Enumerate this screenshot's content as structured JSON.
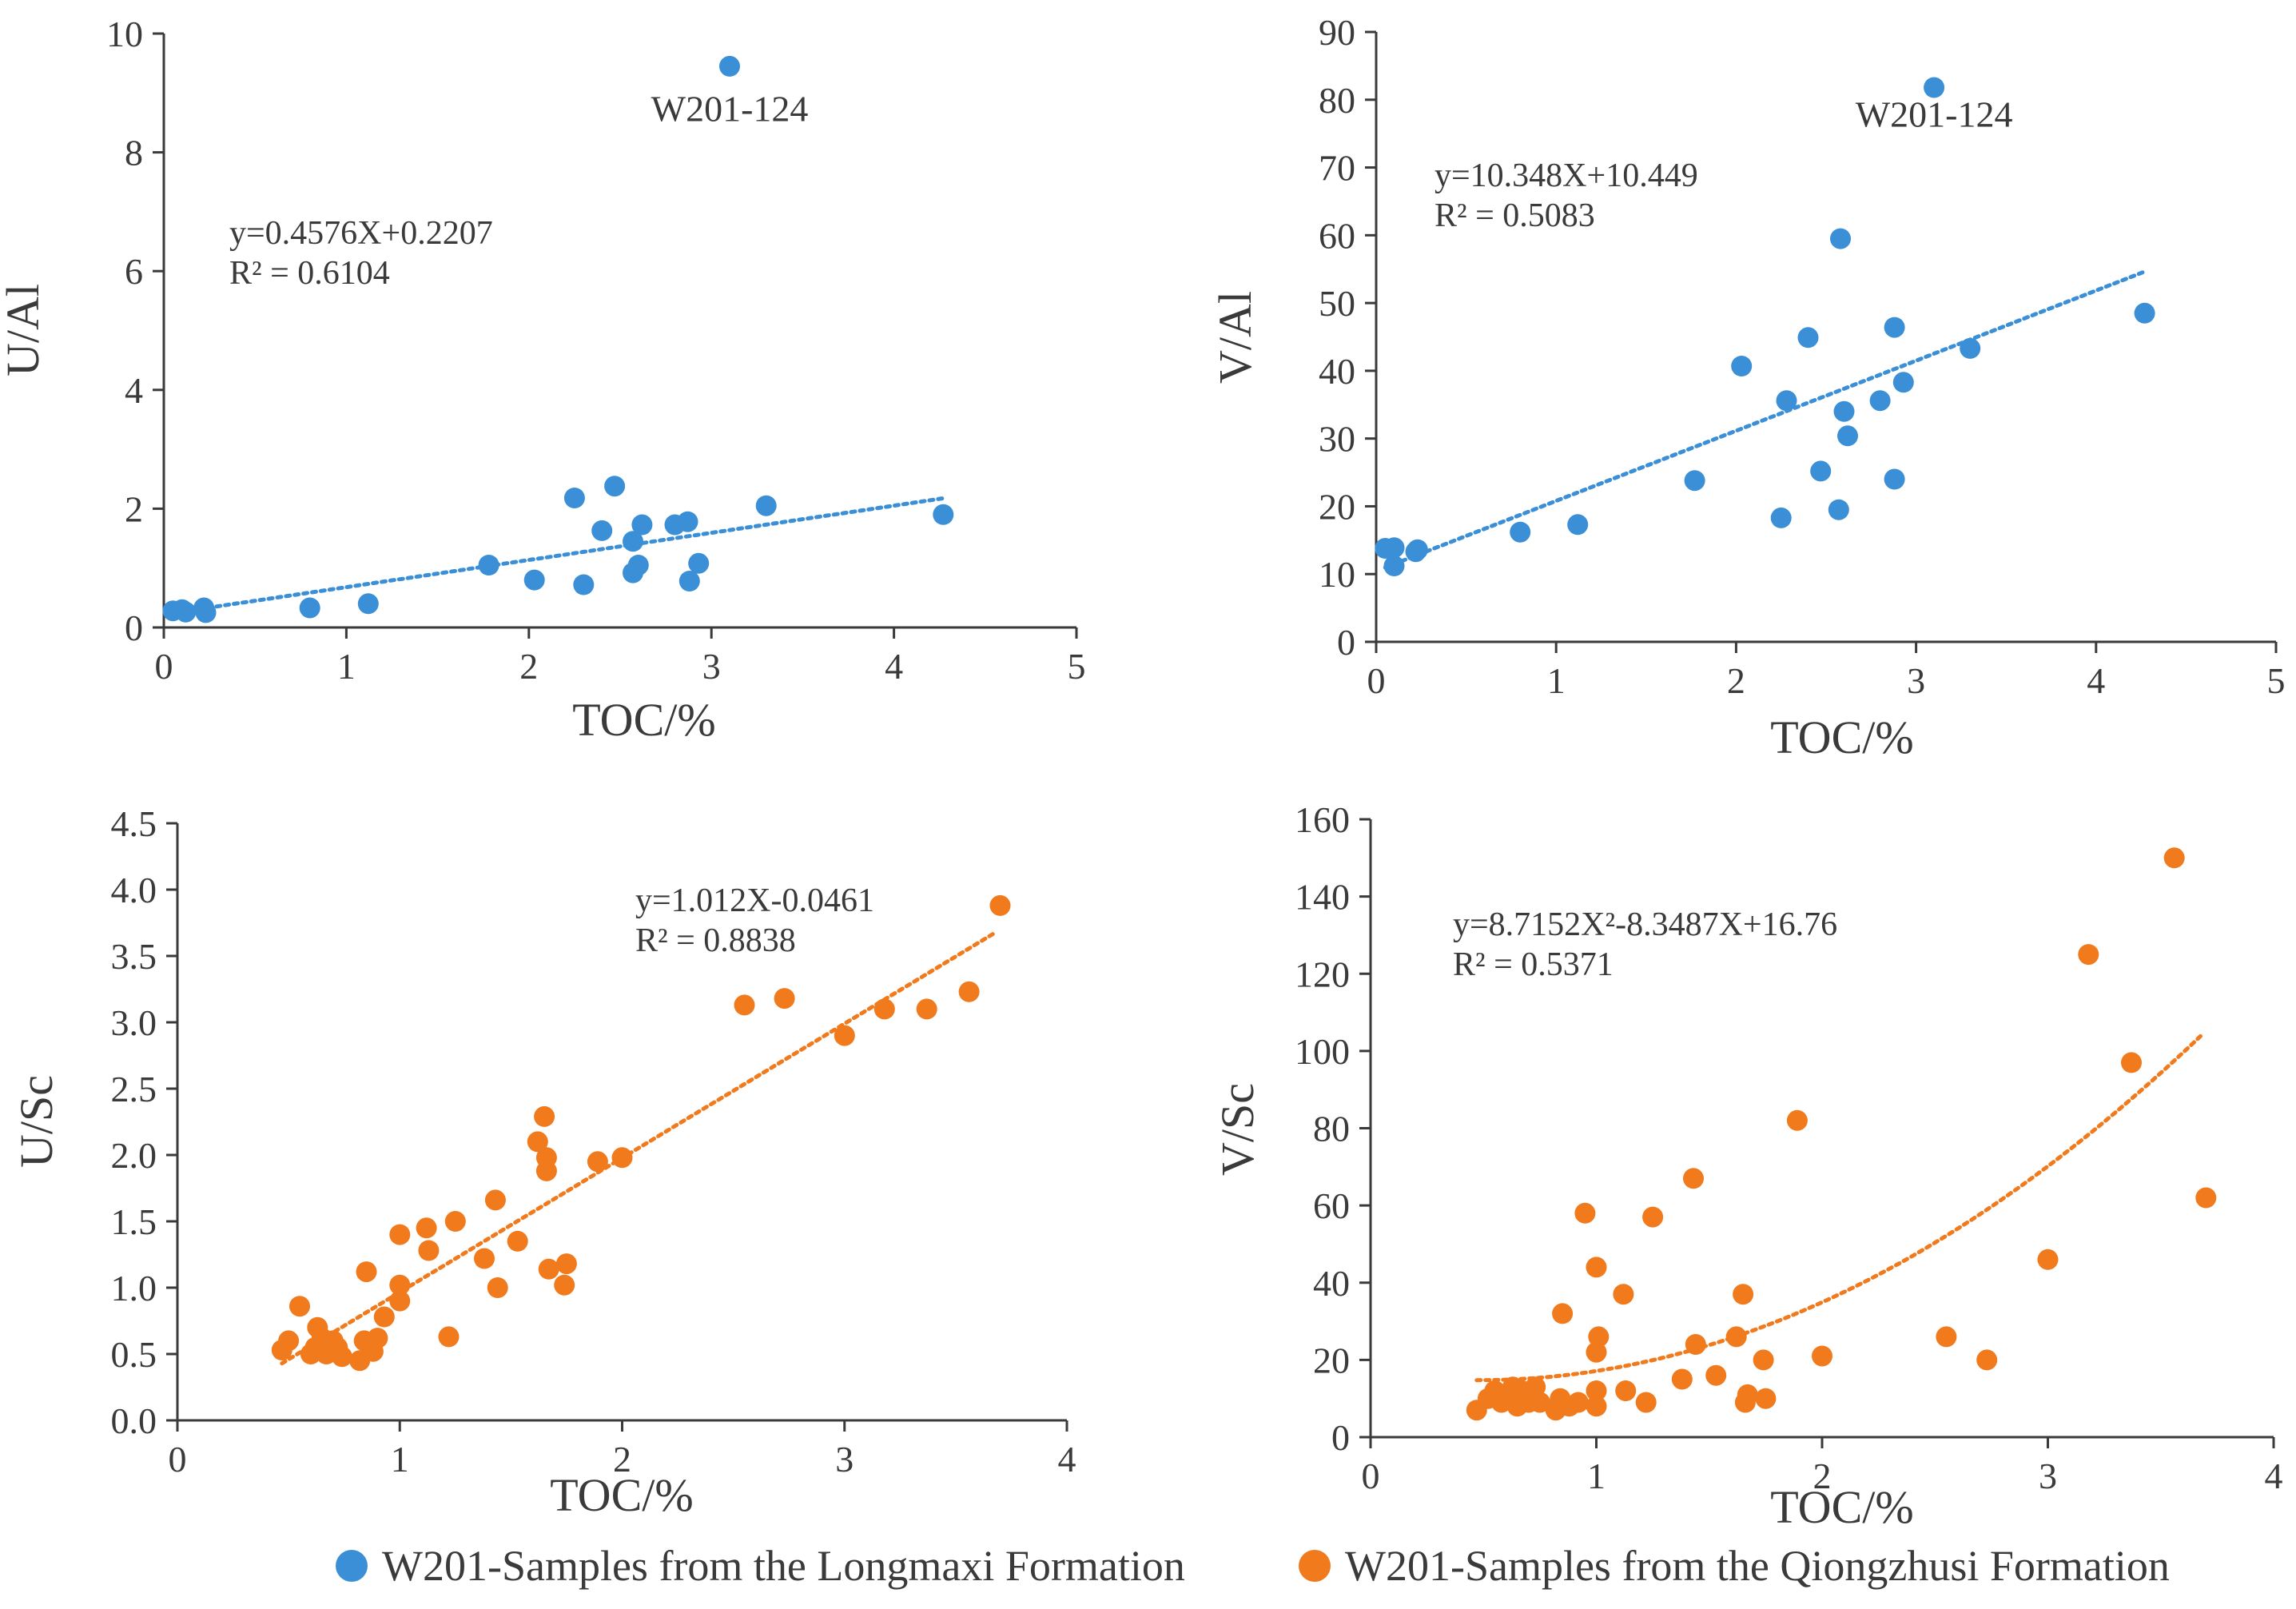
{
  "colors": {
    "longmaxi": "#3a8fd6",
    "qiongzhusi": "#f07a1c",
    "axis": "#3a3a3a"
  },
  "legend": {
    "longmaxi_label": "W201-Samples from the Longmaxi Formation",
    "qiongzhusi_label": "W201-Samples from the Qiongzhusi Formation"
  },
  "chart_data": [
    {
      "id": "ua",
      "type": "scatter",
      "series_key": "longmaxi",
      "xlabel": "TOC/%",
      "ylabel": "U/Al",
      "xlim": [
        0,
        5
      ],
      "ylim": [
        0,
        10
      ],
      "xticks": [
        "0",
        "1",
        "2",
        "3",
        "4",
        "5"
      ],
      "yticks": [
        "0",
        "2",
        "4",
        "6",
        "8",
        "10"
      ],
      "equation": "y=0.4576X+0.2207",
      "r2": "R² = 0.6104",
      "annotation": {
        "text": "W201-124",
        "x": 3.1,
        "y": 8.5
      },
      "trend": {
        "kind": "linear",
        "a": 0.4576,
        "b": 0.2207,
        "x0": 0.05,
        "x1": 4.27
      },
      "points": [
        [
          0.05,
          0.28
        ],
        [
          0.1,
          0.3
        ],
        [
          0.12,
          0.26
        ],
        [
          0.22,
          0.33
        ],
        [
          0.23,
          0.25
        ],
        [
          0.8,
          0.33
        ],
        [
          1.12,
          0.4
        ],
        [
          1.78,
          1.05
        ],
        [
          2.03,
          0.8
        ],
        [
          2.25,
          2.18
        ],
        [
          2.3,
          0.72
        ],
        [
          2.4,
          1.63
        ],
        [
          2.47,
          2.38
        ],
        [
          2.57,
          0.92
        ],
        [
          2.57,
          1.45
        ],
        [
          2.6,
          1.05
        ],
        [
          2.62,
          1.73
        ],
        [
          2.8,
          1.73
        ],
        [
          2.87,
          1.78
        ],
        [
          2.88,
          0.78
        ],
        [
          2.93,
          1.08
        ],
        [
          3.1,
          9.45
        ],
        [
          3.3,
          2.05
        ],
        [
          4.27,
          1.9
        ]
      ]
    },
    {
      "id": "va",
      "type": "scatter",
      "series_key": "longmaxi",
      "xlabel": "TOC/%",
      "ylabel": "V/Al",
      "xlim": [
        0,
        5
      ],
      "ylim": [
        0,
        90
      ],
      "xticks": [
        "0",
        "1",
        "2",
        "3",
        "4",
        "5"
      ],
      "yticks": [
        "0",
        "10",
        "20",
        "30",
        "40",
        "50",
        "60",
        "70",
        "80",
        "90"
      ],
      "equation": "y=10.348X+10.449",
      "r2": "R² = 0.5083",
      "annotation": {
        "text": "W201-124",
        "x": 3.1,
        "y": 76
      },
      "trend": {
        "kind": "linear",
        "a": 10.348,
        "b": 10.449,
        "x0": 0.05,
        "x1": 4.27
      },
      "points": [
        [
          0.05,
          13.8
        ],
        [
          0.1,
          13.9
        ],
        [
          0.1,
          11.2
        ],
        [
          0.22,
          13.3
        ],
        [
          0.23,
          13.6
        ],
        [
          0.8,
          16.2
        ],
        [
          1.12,
          17.3
        ],
        [
          1.77,
          23.8
        ],
        [
          2.03,
          40.7
        ],
        [
          2.25,
          18.3
        ],
        [
          2.28,
          35.6
        ],
        [
          2.4,
          44.9
        ],
        [
          2.47,
          25.2
        ],
        [
          2.57,
          19.5
        ],
        [
          2.58,
          59.5
        ],
        [
          2.6,
          34.0
        ],
        [
          2.62,
          30.4
        ],
        [
          2.8,
          35.6
        ],
        [
          2.88,
          46.4
        ],
        [
          2.88,
          24.0
        ],
        [
          2.93,
          38.3
        ],
        [
          3.1,
          81.8
        ],
        [
          3.3,
          43.3
        ],
        [
          4.27,
          48.5
        ]
      ]
    },
    {
      "id": "usc",
      "type": "scatter",
      "series_key": "qiongzhusi",
      "xlabel": "TOC/%",
      "ylabel": "U/Sc",
      "xlim": [
        0,
        4
      ],
      "ylim": [
        0,
        4.5
      ],
      "xticks": [
        "0",
        "1",
        "2",
        "3",
        "4"
      ],
      "yticks": [
        "0.0",
        "0.5",
        "1.0",
        "1.5",
        "2.0",
        "2.5",
        "3.0",
        "3.5",
        "4.0",
        "4.5"
      ],
      "equation": "y=1.012X-0.0461",
      "r2": "R² = 0.8838",
      "trend": {
        "kind": "linear",
        "a": 1.012,
        "b": -0.0461,
        "x0": 0.47,
        "x1": 3.68
      },
      "points": [
        [
          0.47,
          0.53
        ],
        [
          0.5,
          0.6
        ],
        [
          0.55,
          0.86
        ],
        [
          0.6,
          0.5
        ],
        [
          0.62,
          0.55
        ],
        [
          0.63,
          0.7
        ],
        [
          0.65,
          0.62
        ],
        [
          0.67,
          0.5
        ],
        [
          0.7,
          0.6
        ],
        [
          0.72,
          0.55
        ],
        [
          0.74,
          0.48
        ],
        [
          0.82,
          0.45
        ],
        [
          0.84,
          0.6
        ],
        [
          0.85,
          1.12
        ],
        [
          0.88,
          0.52
        ],
        [
          0.9,
          0.62
        ],
        [
          0.93,
          0.78
        ],
        [
          1.0,
          0.9
        ],
        [
          1.0,
          1.02
        ],
        [
          1.0,
          1.4
        ],
        [
          1.12,
          1.45
        ],
        [
          1.13,
          1.28
        ],
        [
          1.22,
          0.63
        ],
        [
          1.25,
          1.5
        ],
        [
          1.38,
          1.22
        ],
        [
          1.43,
          1.66
        ],
        [
          1.44,
          1.0
        ],
        [
          1.53,
          1.35
        ],
        [
          1.62,
          2.1
        ],
        [
          1.65,
          2.29
        ],
        [
          1.66,
          1.88
        ],
        [
          1.66,
          1.98
        ],
        [
          1.67,
          1.14
        ],
        [
          1.74,
          1.02
        ],
        [
          1.75,
          1.18
        ],
        [
          1.89,
          1.95
        ],
        [
          2.0,
          1.98
        ],
        [
          2.55,
          3.13
        ],
        [
          2.73,
          3.18
        ],
        [
          3.0,
          2.9
        ],
        [
          3.18,
          3.1
        ],
        [
          3.37,
          3.1
        ],
        [
          3.56,
          3.23
        ],
        [
          3.7,
          3.88
        ]
      ]
    },
    {
      "id": "vsc",
      "type": "scatter",
      "series_key": "qiongzhusi",
      "xlabel": "TOC/%",
      "ylabel": "V/Sc",
      "xlim": [
        0,
        4
      ],
      "ylim": [
        0,
        160
      ],
      "xticks": [
        "0",
        "1",
        "2",
        "3",
        "4"
      ],
      "yticks": [
        "0",
        "20",
        "40",
        "60",
        "80",
        "100",
        "120",
        "140",
        "160"
      ],
      "equation": "y=8.7152X²-8.3487X+16.76",
      "r2": "R² = 0.5371",
      "trend": {
        "kind": "quadratic",
        "a": 8.7152,
        "b": -8.3487,
        "c": 16.76,
        "x0": 0.47,
        "x1": 3.68
      },
      "points": [
        [
          0.47,
          7
        ],
        [
          0.52,
          10
        ],
        [
          0.55,
          12
        ],
        [
          0.58,
          9
        ],
        [
          0.6,
          11
        ],
        [
          0.62,
          10
        ],
        [
          0.63,
          13
        ],
        [
          0.65,
          8
        ],
        [
          0.67,
          12
        ],
        [
          0.7,
          9
        ],
        [
          0.72,
          11
        ],
        [
          0.73,
          13
        ],
        [
          0.75,
          9
        ],
        [
          0.82,
          7
        ],
        [
          0.84,
          10
        ],
        [
          0.85,
          32
        ],
        [
          0.88,
          8
        ],
        [
          0.92,
          9
        ],
        [
          0.95,
          58
        ],
        [
          1.0,
          22
        ],
        [
          1.0,
          8
        ],
        [
          1.0,
          12
        ],
        [
          1.0,
          44
        ],
        [
          1.01,
          26
        ],
        [
          1.12,
          37
        ],
        [
          1.13,
          12
        ],
        [
          1.22,
          9
        ],
        [
          1.25,
          57
        ],
        [
          1.38,
          15
        ],
        [
          1.43,
          67
        ],
        [
          1.44,
          24
        ],
        [
          1.53,
          16
        ],
        [
          1.62,
          26
        ],
        [
          1.65,
          37
        ],
        [
          1.66,
          9
        ],
        [
          1.67,
          11
        ],
        [
          1.74,
          20
        ],
        [
          1.75,
          10
        ],
        [
          1.89,
          82
        ],
        [
          2.0,
          21
        ],
        [
          2.55,
          26
        ],
        [
          2.73,
          20
        ],
        [
          3.0,
          46
        ],
        [
          3.18,
          125
        ],
        [
          3.37,
          97
        ],
        [
          3.56,
          150
        ],
        [
          3.7,
          62
        ]
      ]
    }
  ]
}
